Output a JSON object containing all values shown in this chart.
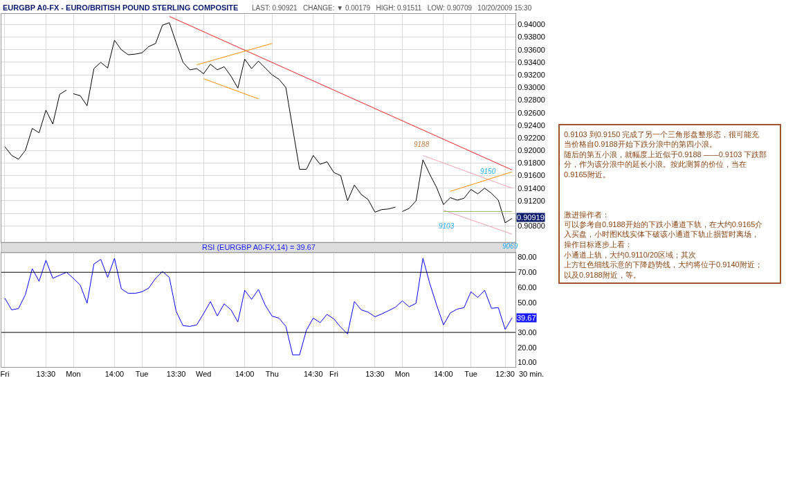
{
  "chart_data": [
    {
      "type": "line",
      "title": "EURGBP A0-FX - EURO/BRITISH POUND STERLING COMPOSITE",
      "subtitle": "LAST: 0.90921   CHANGE: ▼ 0.00179   HIGH: 0.91511   LOW: 0.90709   10/20/2009 15:30",
      "categories": [
        "Fri",
        null,
        null,
        null,
        null,
        null,
        "13:30",
        null,
        null,
        null,
        "Mon",
        null,
        null,
        null,
        null,
        null,
        "14:00",
        null,
        null,
        null,
        "Tue",
        null,
        null,
        null,
        null,
        "13:30",
        null,
        null,
        null,
        "Wed",
        null,
        null,
        null,
        null,
        null,
        "14:00",
        null,
        null,
        null,
        "Thu",
        null,
        null,
        null,
        null,
        null,
        "14:30",
        null,
        null,
        "Fri",
        null,
        null,
        null,
        null,
        null,
        "13:30",
        null,
        null,
        null,
        "Mon",
        null,
        null,
        null,
        null,
        null,
        "14:00",
        null,
        null,
        null,
        "Tue",
        null,
        null,
        null,
        null,
        "12:30",
        null
      ],
      "ylim": [
        0.9054,
        0.9417
      ],
      "yticks": [
        {
          "value": 0.908,
          "label": "0.90800"
        },
        {
          "value": 0.91,
          "label": null
        },
        {
          "value": 0.912,
          "label": "0.91200"
        },
        {
          "value": 0.914,
          "label": "0.91400"
        },
        {
          "value": 0.916,
          "label": "0.91600"
        },
        {
          "value": 0.918,
          "label": "0.91800"
        },
        {
          "value": 0.92,
          "label": "0.92000"
        },
        {
          "value": 0.922,
          "label": "0.92200"
        },
        {
          "value": 0.924,
          "label": "0.92400"
        },
        {
          "value": 0.926,
          "label": "0.92600"
        },
        {
          "value": 0.928,
          "label": "0.92800"
        },
        {
          "value": 0.93,
          "label": "0.93000"
        },
        {
          "value": 0.932,
          "label": "0.93200"
        },
        {
          "value": 0.934,
          "label": "0.93400"
        },
        {
          "value": 0.936,
          "label": "0.93600"
        },
        {
          "value": 0.938,
          "label": "0.93800"
        },
        {
          "value": 0.94,
          "label": "0.94000"
        }
      ],
      "tick_labels": "y",
      "grid": true,
      "series": [
        {
          "color": "#000000",
          "values": [
            0.9206,
            0.9192,
            0.9186,
            0.92,
            0.9235,
            0.9228,
            0.9264,
            0.9242,
            0.9289,
            0.9296,
            null,
            null,
            null,
            null,
            null,
            null,
            null,
            null,
            null,
            null,
            null,
            null,
            null,
            null,
            null,
            null,
            null,
            null,
            null,
            null,
            null,
            null,
            null,
            null,
            null,
            null,
            null,
            null,
            null,
            null,
            null,
            null,
            null,
            null,
            null,
            null,
            null,
            null,
            null,
            null,
            null,
            null,
            null,
            null,
            null,
            null,
            null,
            null,
            null,
            null,
            null,
            null,
            null,
            null,
            null,
            null,
            null,
            null,
            null,
            null,
            null,
            null,
            null,
            null,
            null
          ]
        },
        {
          "color": "#000000",
          "values": [
            null,
            null,
            null,
            null,
            null,
            null,
            null,
            null,
            null,
            null,
            0.929,
            0.9287,
            0.9271,
            0.933,
            0.934,
            0.9331,
            0.9375,
            0.936,
            0.9352,
            0.9353,
            0.9355,
            0.9365,
            0.937,
            0.9399,
            0.9403,
            0.9371,
            0.934,
            0.9328,
            0.933,
            0.9322,
            0.9337,
            0.9328,
            0.9333,
            0.9318,
            0.9299,
            0.9345,
            0.933,
            0.9342,
            0.9331,
            0.932,
            0.9313,
            0.93,
            0.9235,
            0.917,
            0.917,
            0.9192,
            0.9178,
            0.9182,
            0.9165,
            0.916,
            0.912,
            0.9145,
            0.913,
            0.9122,
            0.9102,
            0.9106,
            0.9107,
            0.911,
            null,
            null,
            null,
            null,
            null,
            null,
            null,
            null,
            null,
            null,
            null,
            null,
            null,
            null,
            null,
            null,
            null
          ]
        },
        {
          "color": "#000000",
          "values": [
            null,
            null,
            null,
            null,
            null,
            null,
            null,
            null,
            null,
            null,
            null,
            null,
            null,
            null,
            null,
            null,
            null,
            null,
            null,
            null,
            null,
            null,
            null,
            null,
            null,
            null,
            null,
            null,
            null,
            null,
            null,
            null,
            null,
            null,
            null,
            null,
            null,
            null,
            null,
            null,
            null,
            null,
            null,
            null,
            null,
            null,
            null,
            null,
            null,
            null,
            null,
            null,
            null,
            null,
            null,
            null,
            null,
            null,
            0.9103,
            0.9108,
            0.912,
            0.9185,
            0.9162,
            0.9141,
            0.9114,
            0.9125,
            0.9121,
            0.9124,
            0.9138,
            0.9131,
            0.914,
            0.9132,
            0.9121,
            0.9085,
            0.9092
          ]
        },
        {
          "color": "#e8231f",
          "values": [
            null,
            null,
            null,
            null,
            null,
            null,
            null,
            null,
            null,
            null,
            null,
            null,
            null,
            null,
            null,
            null,
            null,
            null,
            null,
            null,
            null,
            null,
            null,
            null,
            0.9413,
            null,
            null,
            null,
            null,
            null,
            null,
            null,
            null,
            null,
            null,
            null,
            null,
            null,
            null,
            null,
            null,
            null,
            null,
            null,
            null,
            null,
            null,
            null,
            null,
            null,
            null,
            null,
            null,
            null,
            null,
            null,
            null,
            null,
            null,
            null,
            null,
            null,
            null,
            null,
            null,
            null,
            null,
            null,
            null,
            null,
            null,
            null,
            null,
            null,
            0.9169
          ]
        },
        {
          "color": "#ff8c00",
          "values": [
            null,
            null,
            null,
            null,
            null,
            null,
            null,
            null,
            null,
            null,
            null,
            null,
            null,
            null,
            null,
            null,
            null,
            null,
            null,
            null,
            null,
            null,
            null,
            null,
            null,
            null,
            null,
            null,
            0.9336,
            null,
            null,
            null,
            null,
            null,
            null,
            null,
            null,
            null,
            null,
            0.937,
            null,
            null,
            null,
            null,
            null,
            null,
            null,
            null,
            null,
            null,
            null,
            null,
            null,
            null,
            null,
            null,
            null,
            null,
            null,
            null,
            null,
            null,
            null,
            null,
            null,
            null,
            null,
            null,
            null,
            null,
            null,
            null,
            null,
            null,
            null
          ]
        },
        {
          "color": "#ff8c00",
          "values": [
            null,
            null,
            null,
            null,
            null,
            null,
            null,
            null,
            null,
            null,
            null,
            null,
            null,
            null,
            null,
            null,
            null,
            null,
            null,
            null,
            null,
            null,
            null,
            null,
            null,
            null,
            null,
            null,
            null,
            0.9314,
            null,
            null,
            null,
            null,
            null,
            null,
            null,
            0.9282,
            null,
            null,
            null,
            null,
            null,
            null,
            null,
            null,
            null,
            null,
            null,
            null,
            null,
            null,
            null,
            null,
            null,
            null,
            null,
            null,
            null,
            null,
            null,
            null,
            null,
            null,
            null,
            null,
            null,
            null,
            null,
            null,
            null,
            null,
            null,
            null,
            null
          ]
        },
        {
          "color": "#ff8c00",
          "values": [
            null,
            null,
            null,
            null,
            null,
            null,
            null,
            null,
            null,
            null,
            null,
            null,
            null,
            null,
            null,
            null,
            null,
            null,
            null,
            null,
            null,
            null,
            null,
            null,
            null,
            null,
            null,
            null,
            null,
            null,
            null,
            null,
            null,
            null,
            null,
            null,
            null,
            null,
            null,
            null,
            null,
            null,
            null,
            null,
            null,
            null,
            null,
            null,
            null,
            null,
            null,
            null,
            null,
            null,
            null,
            null,
            null,
            null,
            null,
            null,
            null,
            null,
            null,
            null,
            null,
            0.9135,
            null,
            null,
            null,
            null,
            null,
            null,
            null,
            null,
            0.9166
          ]
        },
        {
          "color": "#f4a0b0",
          "values": [
            null,
            null,
            null,
            null,
            null,
            null,
            null,
            null,
            null,
            null,
            null,
            null,
            null,
            null,
            null,
            null,
            null,
            null,
            null,
            null,
            null,
            null,
            null,
            null,
            null,
            null,
            null,
            null,
            null,
            null,
            null,
            null,
            null,
            null,
            null,
            null,
            null,
            null,
            null,
            null,
            null,
            null,
            null,
            null,
            null,
            null,
            null,
            null,
            null,
            null,
            null,
            null,
            null,
            null,
            null,
            null,
            null,
            null,
            null,
            null,
            null,
            0.9192,
            null,
            null,
            null,
            null,
            null,
            null,
            null,
            null,
            null,
            null,
            null,
            null,
            0.914
          ]
        },
        {
          "color": "#f4a0b0",
          "values": [
            null,
            null,
            null,
            null,
            null,
            null,
            null,
            null,
            null,
            null,
            null,
            null,
            null,
            null,
            null,
            null,
            null,
            null,
            null,
            null,
            null,
            null,
            null,
            null,
            null,
            null,
            null,
            null,
            null,
            null,
            null,
            null,
            null,
            null,
            null,
            null,
            null,
            null,
            null,
            null,
            null,
            null,
            null,
            null,
            null,
            null,
            null,
            null,
            null,
            null,
            null,
            null,
            null,
            null,
            null,
            null,
            null,
            null,
            null,
            null,
            null,
            null,
            null,
            null,
            0.9105,
            null,
            null,
            null,
            null,
            null,
            null,
            null,
            null,
            null,
            0.9067
          ]
        },
        {
          "color": "#8fbc5a",
          "values": [
            null,
            null,
            null,
            null,
            null,
            null,
            null,
            null,
            null,
            null,
            null,
            null,
            null,
            null,
            null,
            null,
            null,
            null,
            null,
            null,
            null,
            null,
            null,
            null,
            null,
            null,
            null,
            null,
            null,
            null,
            null,
            null,
            null,
            null,
            null,
            null,
            null,
            null,
            null,
            null,
            null,
            null,
            null,
            null,
            null,
            null,
            null,
            null,
            null,
            null,
            null,
            null,
            null,
            null,
            null,
            null,
            null,
            null,
            null,
            null,
            null,
            null,
            null,
            null,
            0.9103,
            null,
            null,
            null,
            null,
            null,
            null,
            null,
            null,
            null,
            0.9103
          ]
        }
      ],
      "annotations": [
        "9188",
        "9150",
        "9103",
        "9069",
        {
          "text": "0.90919",
          "y": 0.90919
        },
        "0.9103 到0.9150 完成了另一个三角形盘整形态，很可能充当价格自0.9188开始下跌分浪中的第四小浪。",
        "随后的第五小浪，就幅度上近似于0.9188 ——0.9103 下跌部分，作为该分浪中的延长小浪。按此测算的价位，当在0.9165附近。",
        "激进操作者：",
        "可以参考自0.9188开始的下跌小通道下轨，在大约0.9165介入买盘，小时图K线实体下破该小通道下轨止损暂时离场，",
        "操作目标逐步上看：",
        "小通道上轨，大约0.9110/20区域；其次",
        "上方红色细线示意的下降趋势线，大约将位于0.9140附近；",
        "以及0.9188附近，等。"
      ]
    },
    {
      "type": "line",
      "title": "RSI (EURGBP A0-FX,14) = 39.67",
      "xlabel": "30 min.",
      "categories": [
        "Fri",
        null,
        null,
        null,
        null,
        null,
        "13:30",
        null,
        null,
        null,
        "Mon",
        null,
        null,
        null,
        null,
        null,
        "14:00",
        null,
        null,
        null,
        "Tue",
        null,
        null,
        null,
        null,
        "13:30",
        null,
        null,
        null,
        "Wed",
        null,
        null,
        null,
        null,
        null,
        "14:00",
        null,
        null,
        null,
        "Thu",
        null,
        null,
        null,
        null,
        null,
        "14:30",
        null,
        null,
        "Fri",
        null,
        null,
        null,
        null,
        null,
        "13:30",
        null,
        null,
        null,
        "Mon",
        null,
        null,
        null,
        null,
        null,
        "14:00",
        null,
        null,
        null,
        "Tue",
        null,
        null,
        null,
        null,
        "12:30",
        null
      ],
      "ylim": [
        7,
        83
      ],
      "yticks": [
        {
          "value": 10,
          "label": "10.00"
        },
        {
          "value": 20,
          "label": "20.00"
        },
        {
          "value": 30,
          "label": "30.00"
        },
        {
          "value": 50,
          "label": "50.00"
        },
        {
          "value": 60,
          "label": "60.00"
        },
        {
          "value": 70,
          "label": "70.00"
        },
        {
          "value": 80,
          "label": "80.00"
        }
      ],
      "grid": "x",
      "series": [
        {
          "color": "#0000ff",
          "values": [
            52.8,
            45,
            45.9,
            55.1,
            72.4,
            64,
            78,
            66,
            68,
            70,
            66,
            61.5,
            49.4,
            75.5,
            78.6,
            66.6,
            79.3,
            59,
            56,
            56,
            57,
            59.5,
            66,
            70.5,
            66.6,
            44,
            34.5,
            34,
            35,
            42.5,
            50.5,
            41,
            49,
            45,
            37,
            58,
            52,
            58.6,
            48,
            40.8,
            39.5,
            34,
            15,
            15,
            31.5,
            39.5,
            36.5,
            42,
            39,
            33.5,
            29,
            50.5,
            45,
            43.5,
            40.4,
            42.3,
            44.5,
            46.8,
            51,
            47,
            49.4,
            79.3,
            62.5,
            48.2,
            35,
            43,
            45.5,
            46.5,
            57,
            53.3,
            58,
            46,
            46.5,
            32,
            39.67
          ]
        }
      ],
      "ref_lines": [
        {
          "axis": "y",
          "value": 70,
          "color": "#000000"
        },
        {
          "axis": "y",
          "value": 30,
          "color": "#000000"
        }
      ],
      "annotations": [
        "39.67"
      ]
    }
  ]
}
